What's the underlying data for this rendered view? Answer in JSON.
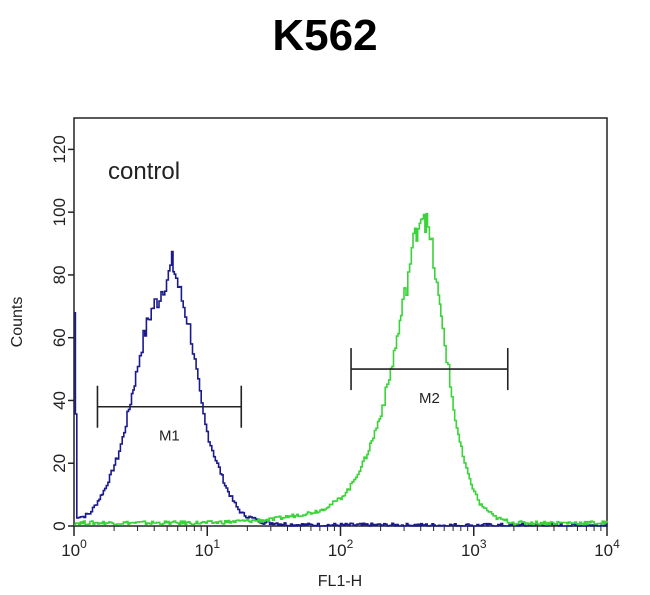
{
  "chart_data": {
    "type": "line",
    "title": "K562",
    "xlabel": "FL1-H",
    "ylabel": "Counts",
    "x_scale": "log",
    "xlim": [
      1,
      10000
    ],
    "ylim": [
      0,
      130
    ],
    "x_ticks": [
      {
        "value": 1,
        "base": "10",
        "exp": "0"
      },
      {
        "value": 10,
        "base": "10",
        "exp": "1"
      },
      {
        "value": 100,
        "base": "10",
        "exp": "2"
      },
      {
        "value": 1000,
        "base": "10",
        "exp": "3"
      },
      {
        "value": 10000,
        "base": "10",
        "exp": "4"
      }
    ],
    "y_ticks": [
      "0",
      "20",
      "40",
      "60",
      "80",
      "100",
      "120"
    ],
    "annotation": "control",
    "gates": [
      {
        "label": "M1",
        "x_start": 1.5,
        "x_end": 18,
        "y": 38
      },
      {
        "label": "M2",
        "x_start": 120,
        "x_end": 1800,
        "y": 50
      }
    ],
    "series": [
      {
        "color": "#1a1a8c",
        "x": [
          1.0,
          1.05,
          1.15,
          1.3,
          1.5,
          1.7,
          1.9,
          2.1,
          2.3,
          2.5,
          2.7,
          2.9,
          3.1,
          3.3,
          3.6,
          3.9,
          4.2,
          4.5,
          4.8,
          5.1,
          5.4,
          5.8,
          6.2,
          6.6,
          7.0,
          7.5,
          8.0,
          8.5,
          9.0,
          9.6,
          10.5,
          11.5,
          12.5,
          13.5,
          15,
          16.5,
          18,
          20,
          23,
          27,
          32,
          40,
          60,
          100,
          1000,
          10000
        ],
        "y": [
          68,
          3,
          3,
          4,
          8,
          12,
          17,
          22,
          28,
          35,
          42,
          48,
          55,
          60,
          66,
          70,
          72,
          75,
          78,
          80,
          84,
          79,
          74,
          70,
          66,
          60,
          52,
          45,
          38,
          32,
          26,
          21,
          17,
          13,
          9,
          6,
          4,
          3,
          2,
          1,
          1,
          0.5,
          0.3,
          0.3,
          0.2,
          0.2
        ]
      },
      {
        "color": "#3ad43a",
        "x": [
          1,
          3,
          10,
          30,
          40,
          55,
          70,
          85,
          100,
          115,
          130,
          150,
          170,
          190,
          210,
          230,
          250,
          270,
          290,
          310,
          330,
          350,
          370,
          390,
          410,
          430,
          450,
          480,
          510,
          540,
          580,
          620,
          660,
          700,
          760,
          820,
          900,
          1000,
          1100,
          1250,
          1400,
          1600,
          2000,
          3000,
          5000,
          10000
        ],
        "y": [
          1,
          1,
          1,
          2,
          3,
          4,
          5,
          7,
          9,
          12,
          16,
          21,
          27,
          33,
          40,
          47,
          55,
          62,
          70,
          77,
          84,
          90,
          95,
          98,
          101,
          98,
          94,
          88,
          80,
          72,
          63,
          54,
          45,
          37,
          29,
          22,
          16,
          11,
          7,
          5,
          3,
          2,
          1,
          1,
          1,
          1
        ]
      }
    ]
  }
}
